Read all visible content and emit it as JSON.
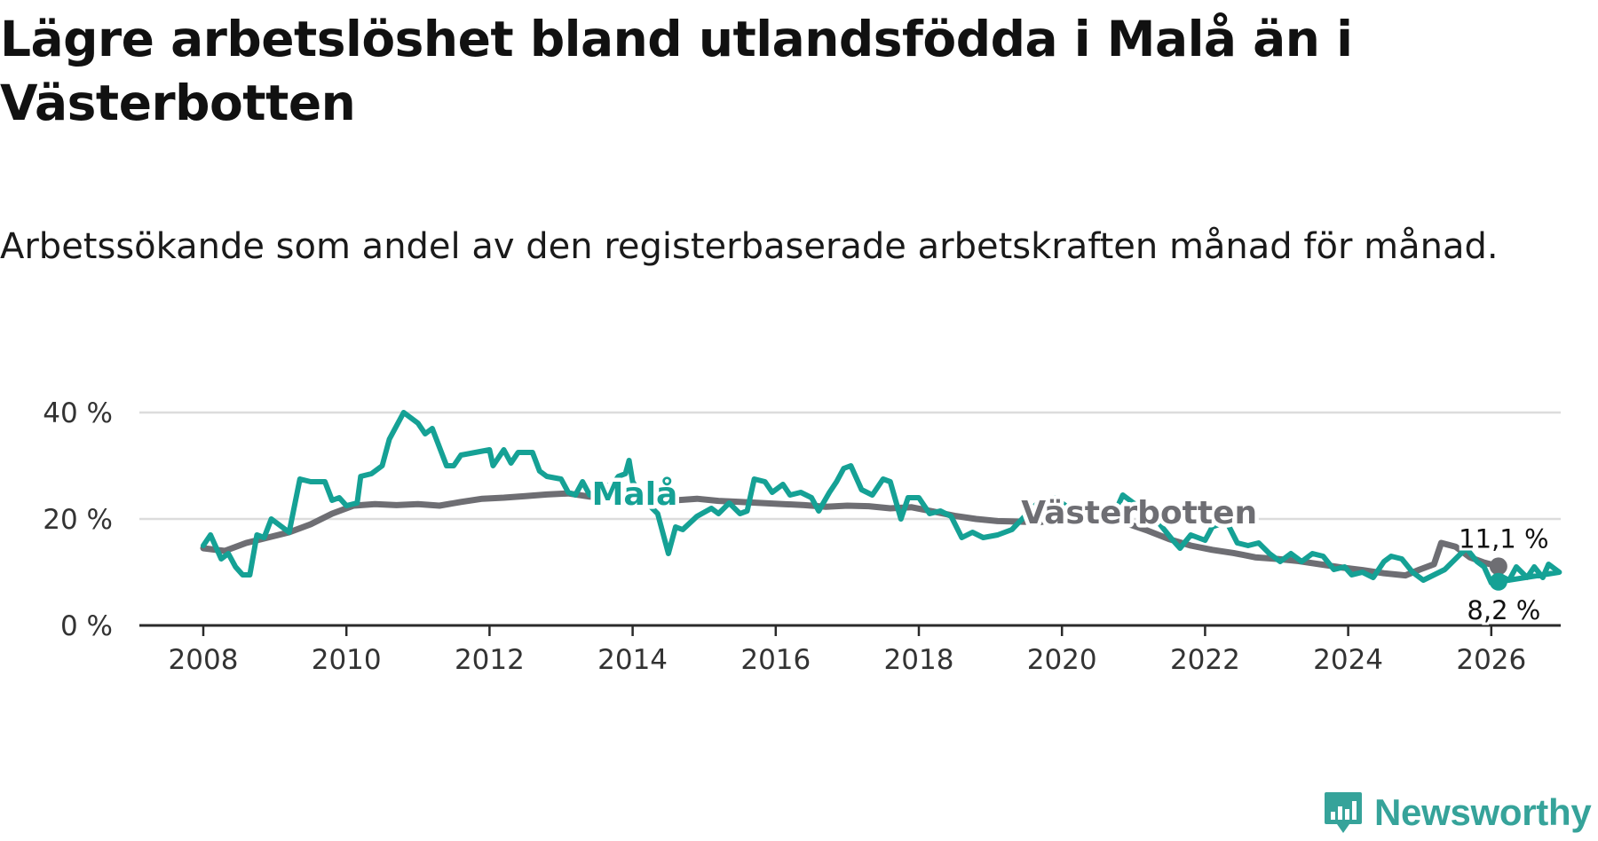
{
  "title": "Lägre arbetslöshet bland utlandsfödda i Malå än i Västerbotten",
  "subtitle": "Arbetssökande som andel av den registerbaserade arbetskraften månad för månad.",
  "brand": {
    "name": "Newsworthy",
    "icon": "newsworthy-logo-icon",
    "color": "#36a39a"
  },
  "chart_data": {
    "type": "line",
    "title": "Lägre arbetslöshet bland utlandsfödda i Malå än i Västerbotten",
    "subtitle": "Arbetssökande som andel av den registerbaserade arbetskraften månad för månad.",
    "xlabel": "",
    "ylabel": "",
    "x_range": [
      2007,
      2027
    ],
    "ylim": [
      0,
      40
    ],
    "y_ticks": [
      0,
      20,
      40
    ],
    "y_tick_labels": [
      "0 %",
      "20 %",
      "40 %"
    ],
    "x_ticks": [
      2008,
      2010,
      2012,
      2014,
      2016,
      2018,
      2020,
      2022,
      2024,
      2026
    ],
    "x_tick_labels": [
      "2008",
      "2010",
      "2012",
      "2014",
      "2016",
      "2018",
      "2020",
      "2022",
      "2024",
      "2026"
    ],
    "grid": true,
    "series": [
      {
        "name": "Västerbotten",
        "color": "#6e6e73",
        "end_label": "11,1 %",
        "points": [
          [
            2008.0,
            14.5
          ],
          [
            2008.3,
            14.0
          ],
          [
            2008.6,
            15.5
          ],
          [
            2008.9,
            16.5
          ],
          [
            2009.2,
            17.5
          ],
          [
            2009.5,
            19.0
          ],
          [
            2009.8,
            21.0
          ],
          [
            2010.1,
            22.5
          ],
          [
            2010.4,
            22.8
          ],
          [
            2010.7,
            22.6
          ],
          [
            2011.0,
            22.8
          ],
          [
            2011.3,
            22.5
          ],
          [
            2011.6,
            23.2
          ],
          [
            2011.9,
            23.8
          ],
          [
            2012.2,
            24.0
          ],
          [
            2012.5,
            24.3
          ],
          [
            2012.8,
            24.6
          ],
          [
            2013.1,
            24.8
          ],
          [
            2013.4,
            24.2
          ],
          [
            2013.7,
            24.0
          ],
          [
            2014.0,
            23.8
          ],
          [
            2014.3,
            23.6
          ],
          [
            2014.6,
            23.5
          ],
          [
            2014.9,
            23.8
          ],
          [
            2015.2,
            23.4
          ],
          [
            2015.5,
            23.2
          ],
          [
            2015.8,
            23.0
          ],
          [
            2016.1,
            22.8
          ],
          [
            2016.4,
            22.6
          ],
          [
            2016.7,
            22.3
          ],
          [
            2017.0,
            22.5
          ],
          [
            2017.3,
            22.4
          ],
          [
            2017.6,
            22.0
          ],
          [
            2017.9,
            22.2
          ],
          [
            2018.2,
            21.4
          ],
          [
            2018.5,
            20.6
          ],
          [
            2018.8,
            20.0
          ],
          [
            2019.1,
            19.6
          ],
          [
            2019.4,
            19.5
          ],
          [
            2019.7,
            19.4
          ],
          [
            2020.0,
            20.5
          ],
          [
            2020.3,
            20.2
          ],
          [
            2020.6,
            19.6
          ],
          [
            2020.9,
            19.2
          ],
          [
            2021.2,
            17.8
          ],
          [
            2021.5,
            16.2
          ],
          [
            2021.8,
            15.0
          ],
          [
            2022.1,
            14.2
          ],
          [
            2022.4,
            13.6
          ],
          [
            2022.7,
            12.8
          ],
          [
            2023.0,
            12.5
          ],
          [
            2023.3,
            12.1
          ],
          [
            2023.6,
            11.5
          ],
          [
            2023.9,
            10.9
          ],
          [
            2024.2,
            10.4
          ],
          [
            2024.5,
            9.8
          ],
          [
            2024.8,
            9.4
          ],
          [
            2025.0,
            10.5
          ],
          [
            2025.2,
            11.5
          ],
          [
            2025.3,
            15.5
          ],
          [
            2025.5,
            14.8
          ],
          [
            2025.7,
            12.8
          ],
          [
            2025.9,
            11.8
          ],
          [
            2026.1,
            11.1
          ]
        ]
      },
      {
        "name": "Malå",
        "color": "#15a195",
        "end_label": "8,2 %",
        "points": [
          [
            2008.0,
            15.0
          ],
          [
            2008.1,
            17.0
          ],
          [
            2008.25,
            12.5
          ],
          [
            2008.35,
            13.5
          ],
          [
            2008.45,
            11.0
          ],
          [
            2008.55,
            9.5
          ],
          [
            2008.65,
            9.5
          ],
          [
            2008.75,
            17.0
          ],
          [
            2008.85,
            16.5
          ],
          [
            2008.95,
            20.0
          ],
          [
            2009.2,
            17.5
          ],
          [
            2009.35,
            27.5
          ],
          [
            2009.5,
            27.0
          ],
          [
            2009.7,
            27.0
          ],
          [
            2009.8,
            23.5
          ],
          [
            2009.9,
            24.0
          ],
          [
            2010.0,
            22.5
          ],
          [
            2010.15,
            23.0
          ],
          [
            2010.2,
            28.0
          ],
          [
            2010.35,
            28.5
          ],
          [
            2010.5,
            30.0
          ],
          [
            2010.6,
            35.0
          ],
          [
            2010.8,
            40.0
          ],
          [
            2011.0,
            38.0
          ],
          [
            2011.1,
            36.0
          ],
          [
            2011.2,
            37.0
          ],
          [
            2011.4,
            30.0
          ],
          [
            2011.5,
            30.0
          ],
          [
            2011.6,
            32.0
          ],
          [
            2011.8,
            32.5
          ],
          [
            2012.0,
            33.0
          ],
          [
            2012.05,
            30.0
          ],
          [
            2012.2,
            33.0
          ],
          [
            2012.3,
            30.5
          ],
          [
            2012.4,
            32.5
          ],
          [
            2012.6,
            32.5
          ],
          [
            2012.7,
            29.0
          ],
          [
            2012.8,
            28.0
          ],
          [
            2013.0,
            27.5
          ],
          [
            2013.1,
            25.0
          ],
          [
            2013.2,
            24.5
          ],
          [
            2013.3,
            27.0
          ],
          [
            2013.4,
            24.5
          ],
          [
            2013.6,
            26.5
          ],
          [
            2013.7,
            26.0
          ],
          [
            2013.8,
            28.0
          ],
          [
            2013.9,
            28.5
          ],
          [
            2013.95,
            31.0
          ],
          [
            2014.0,
            27.0
          ],
          [
            2014.2,
            23.0
          ],
          [
            2014.35,
            21.0
          ],
          [
            2014.5,
            13.5
          ],
          [
            2014.6,
            18.5
          ],
          [
            2014.7,
            18.0
          ],
          [
            2014.9,
            20.5
          ],
          [
            2015.1,
            22.0
          ],
          [
            2015.2,
            21.0
          ],
          [
            2015.35,
            23.0
          ],
          [
            2015.5,
            21.0
          ],
          [
            2015.6,
            21.5
          ],
          [
            2015.7,
            27.5
          ],
          [
            2015.85,
            27.0
          ],
          [
            2015.95,
            25.0
          ],
          [
            2016.1,
            26.5
          ],
          [
            2016.2,
            24.5
          ],
          [
            2016.35,
            25.0
          ],
          [
            2016.5,
            24.0
          ],
          [
            2016.6,
            21.5
          ],
          [
            2016.75,
            25.0
          ],
          [
            2016.85,
            27.0
          ],
          [
            2016.95,
            29.5
          ],
          [
            2017.05,
            30.0
          ],
          [
            2017.2,
            25.5
          ],
          [
            2017.35,
            24.5
          ],
          [
            2017.5,
            27.5
          ],
          [
            2017.6,
            27.0
          ],
          [
            2017.75,
            20.0
          ],
          [
            2017.85,
            24.0
          ],
          [
            2018.0,
            24.0
          ],
          [
            2018.15,
            21.0
          ],
          [
            2018.3,
            21.5
          ],
          [
            2018.45,
            20.5
          ],
          [
            2018.6,
            16.5
          ],
          [
            2018.75,
            17.5
          ],
          [
            2018.9,
            16.5
          ],
          [
            2019.1,
            17.0
          ],
          [
            2019.3,
            18.0
          ],
          [
            2019.55,
            21.5
          ],
          [
            2019.7,
            23.5
          ],
          [
            2019.8,
            22.5
          ],
          [
            2019.9,
            24.0
          ],
          [
            2020.1,
            22.0
          ],
          [
            2020.3,
            21.0
          ],
          [
            2020.5,
            22.5
          ],
          [
            2020.75,
            21.5
          ],
          [
            2020.85,
            24.5
          ],
          [
            2021.0,
            23.0
          ],
          [
            2021.25,
            21.0
          ],
          [
            2021.4,
            18.5
          ],
          [
            2021.55,
            16.0
          ],
          [
            2021.65,
            14.5
          ],
          [
            2021.8,
            17.0
          ],
          [
            2022.0,
            16.0
          ],
          [
            2022.1,
            18.5
          ],
          [
            2022.3,
            19.5
          ],
          [
            2022.45,
            15.5
          ],
          [
            2022.6,
            15.0
          ],
          [
            2022.75,
            15.5
          ],
          [
            2022.9,
            13.5
          ],
          [
            2023.05,
            12.0
          ],
          [
            2023.2,
            13.5
          ],
          [
            2023.35,
            12.0
          ],
          [
            2023.5,
            13.5
          ],
          [
            2023.65,
            13.0
          ],
          [
            2023.8,
            10.5
          ],
          [
            2023.95,
            11.0
          ],
          [
            2024.05,
            9.5
          ],
          [
            2024.2,
            10.0
          ],
          [
            2024.35,
            9.0
          ],
          [
            2024.5,
            12.0
          ],
          [
            2024.6,
            13.0
          ],
          [
            2024.75,
            12.5
          ],
          [
            2024.9,
            10.0
          ],
          [
            2025.05,
            8.5
          ],
          [
            2025.2,
            9.5
          ],
          [
            2025.35,
            10.5
          ],
          [
            2025.5,
            12.5
          ],
          [
            2025.65,
            14.5
          ],
          [
            2025.8,
            12.0
          ],
          [
            2025.9,
            11.0
          ],
          [
            2026.0,
            8.0
          ],
          [
            2026.1,
            9.5
          ],
          [
            2026.25,
            8.5
          ],
          [
            2026.35,
            11.0
          ],
          [
            2026.5,
            9.0
          ],
          [
            2026.6,
            11.0
          ],
          [
            2026.72,
            9.0
          ],
          [
            2026.8,
            11.5
          ],
          [
            2026.95,
            10.0
          ],
          [
            2026.1,
            8.2
          ]
        ]
      }
    ],
    "inline_labels": [
      {
        "text": "Malå",
        "series": "Malå",
        "x": 2014.0,
        "y": 23.0
      },
      {
        "text": "Västerbotten",
        "series": "Västerbotten",
        "x": 2020.0,
        "y": 19.5
      }
    ]
  }
}
